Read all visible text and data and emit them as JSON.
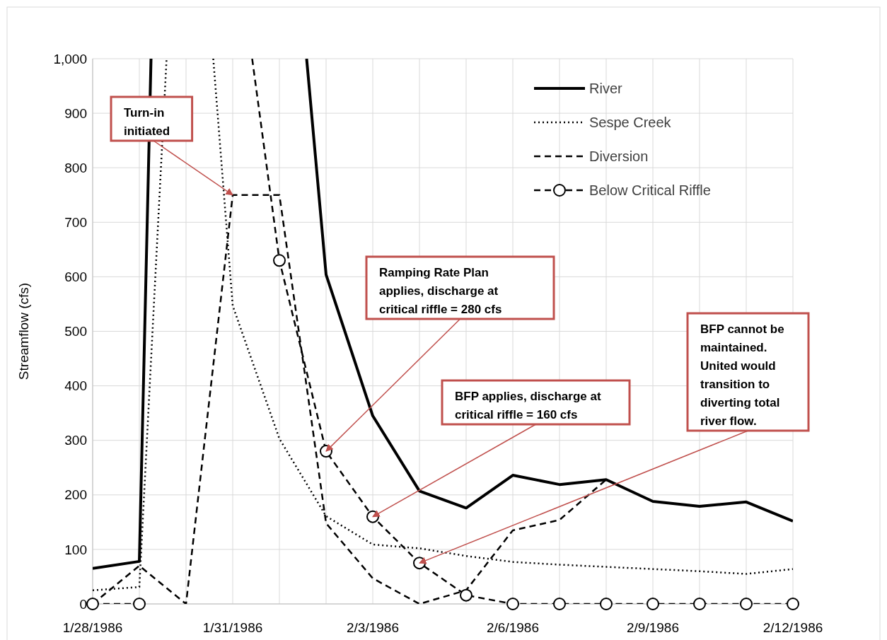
{
  "chart_data": {
    "type": "line",
    "ylabel": "Streamflow (cfs)",
    "xlim": [
      "1986-01-28",
      "1986-02-12"
    ],
    "ylim": [
      0,
      1000
    ],
    "xticks": [
      {
        "value": "1986-01-28",
        "label": "1/28/1986"
      },
      {
        "value": "1986-01-29",
        "label": null
      },
      {
        "value": "1986-01-30",
        "label": null
      },
      {
        "value": "1986-01-31",
        "label": "1/31/1986"
      },
      {
        "value": "1986-02-01",
        "label": null
      },
      {
        "value": "1986-02-02",
        "label": null
      },
      {
        "value": "1986-02-03",
        "label": "2/3/1986"
      },
      {
        "value": "1986-02-04",
        "label": null
      },
      {
        "value": "1986-02-05",
        "label": null
      },
      {
        "value": "1986-02-06",
        "label": "2/6/1986"
      },
      {
        "value": "1986-02-07",
        "label": null
      },
      {
        "value": "1986-02-08",
        "label": null
      },
      {
        "value": "1986-02-09",
        "label": "2/9/1986"
      },
      {
        "value": "1986-02-10",
        "label": null
      },
      {
        "value": "1986-02-11",
        "label": null
      },
      {
        "value": "1986-02-12",
        "label": "2/12/1986"
      }
    ],
    "yticks": [
      0,
      100,
      200,
      300,
      400,
      500,
      600,
      700,
      800,
      900,
      {
        "value": 1000,
        "label": "1,000"
      }
    ],
    "grid": true,
    "legend": "top right",
    "series": [
      {
        "name": "River",
        "color": "#000000",
        "line_style": "solid",
        "marker": "none",
        "x": [
          "1986-01-28",
          "1986-01-29",
          "1986-01-29T06:00",
          "1986-01-31",
          "1986-02-01T14:00",
          "1986-02-02",
          "1986-02-03",
          "1986-02-04",
          "1986-02-05",
          "1986-02-06",
          "1986-02-07",
          "1986-02-08",
          "1986-02-09",
          "1986-02-10",
          "1986-02-11",
          "1986-02-12"
        ],
        "values": [
          65,
          78,
          1000,
          null,
          1000,
          604,
          345,
          207,
          176,
          236,
          219,
          228,
          188,
          179,
          187,
          152
        ]
      },
      {
        "name": "Sespe Creek",
        "color": "#000000",
        "line_style": "dotted",
        "marker": "none",
        "x": [
          "1986-01-28",
          "1986-01-29",
          "1986-01-29T14:00",
          "1986-01-30",
          "1986-01-30T14:00",
          "1986-01-31",
          "1986-02-01",
          "1986-02-02",
          "1986-02-03",
          "1986-02-04",
          "1986-02-05",
          "1986-02-06",
          "1986-02-07",
          "1986-02-08",
          "1986-02-09",
          "1986-02-10",
          "1986-02-11",
          "1986-02-12"
        ],
        "values": [
          25,
          31,
          1000,
          null,
          1000,
          547,
          303,
          161,
          109,
          102,
          88,
          77,
          72,
          68,
          64,
          60,
          55,
          64
        ]
      },
      {
        "name": "Diversion",
        "color": "#000000",
        "line_style": "dashed",
        "marker": "none",
        "x": [
          "1986-01-28",
          "1986-01-29",
          "1986-01-30",
          "1986-01-31",
          "1986-02-01",
          "1986-02-02",
          "1986-02-03",
          "1986-02-04",
          "1986-02-05",
          "1986-02-06",
          "1986-02-07",
          "1986-02-08"
        ],
        "values": [
          0,
          70,
          0,
          750,
          750,
          148,
          47,
          0,
          25,
          135,
          154,
          228
        ]
      },
      {
        "name": "Below Critical Riffle",
        "color": "#000000",
        "line_style": "dashed",
        "marker": "circle",
        "x": [
          "1986-01-28",
          "1986-01-29",
          "1986-01-30",
          "1986-01-31T10:00",
          "1986-02-01",
          "1986-02-02",
          "1986-02-03",
          "1986-02-04",
          "1986-02-05",
          "1986-02-06",
          "1986-02-07",
          "1986-02-08",
          "1986-02-09",
          "1986-02-10",
          "1986-02-11",
          "1986-02-12"
        ],
        "values": [
          0,
          0,
          null,
          1000,
          630,
          280,
          160,
          75,
          16,
          0,
          0,
          0,
          0,
          0,
          0,
          0
        ]
      }
    ],
    "annotations": [
      {
        "text": "Turn-in initiated",
        "x": "1986-01-31",
        "y": 750
      },
      {
        "text": "Ramping Rate Plan applies, discharge at critical riffle = 280 cfs",
        "x": "1986-02-02",
        "y": 280
      },
      {
        "text": "BFP applies, discharge at critical riffle = 160 cfs",
        "x": "1986-02-03",
        "y": 160
      },
      {
        "text": "BFP cannot be maintained. United would transition to diverting total river flow.",
        "x": "1986-02-04",
        "y": 75
      }
    ]
  }
}
